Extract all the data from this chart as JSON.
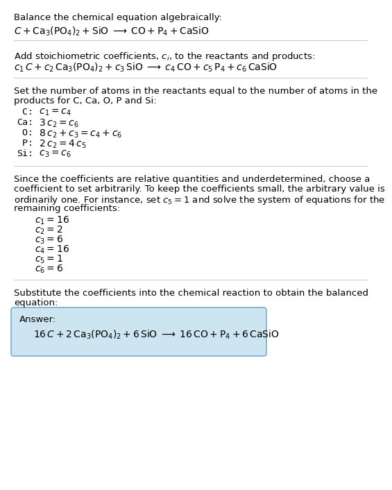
{
  "bg_color": "#ffffff",
  "text_color": "#000000",
  "box_color": "#cce5f0",
  "box_edge_color": "#5ba3c9",
  "section1_title": "Balance the chemical equation algebraically:",
  "section1_eq": "$C + \\mathrm{Ca_3(PO_4)_2} + \\mathrm{SiO} \\;\\longrightarrow\\; \\mathrm{CO} + \\mathrm{P_4} + \\mathrm{CaSiO}$",
  "section2_intro": "Add stoichiometric coefficients, $c_i$, to the reactants and products:",
  "section2_eq": "$c_1\\, C + c_2\\, \\mathrm{Ca_3(PO_4)_2} + c_3\\, \\mathrm{SiO} \\;\\longrightarrow\\; c_4\\, \\mathrm{CO} + c_5\\, \\mathrm{P_4} + c_6\\, \\mathrm{CaSiO}$",
  "section3_intro_lines": [
    "Set the number of atoms in the reactants equal to the number of atoms in the",
    "products for C, Ca, O, P and Si:"
  ],
  "section3_lines": [
    [
      " C:",
      " $c_1 = c_4$"
    ],
    [
      "Ca:",
      " $3\\,c_2 = c_6$"
    ],
    [
      " O:",
      " $8\\,c_2 + c_3 = c_4 + c_6$"
    ],
    [
      " P:",
      " $2\\,c_2 = 4\\,c_5$"
    ],
    [
      "Si:",
      " $c_3 = c_6$"
    ]
  ],
  "section4_intro_lines": [
    "Since the coefficients are relative quantities and underdetermined, choose a",
    "coefficient to set arbitrarily. To keep the coefficients small, the arbitrary value is",
    "ordinarily one. For instance, set $c_5 = 1$ and solve the system of equations for the",
    "remaining coefficients:"
  ],
  "section4_lines": [
    "$c_1 = 16$",
    "$c_2 = 2$",
    "$c_3 = 6$",
    "$c_4 = 16$",
    "$c_5 = 1$",
    "$c_6 = 6$"
  ],
  "section5_intro_lines": [
    "Substitute the coefficients into the chemical reaction to obtain the balanced",
    "equation:"
  ],
  "answer_label": "Answer:",
  "answer_eq": "$16\\,C + 2\\,\\mathrm{Ca_3(PO_4)_2} + 6\\,\\mathrm{SiO} \\;\\longrightarrow\\; 16\\,\\mathrm{CO} + \\mathrm{P_4} + 6\\,\\mathrm{CaSiO}$",
  "fs": 9.5,
  "fs_eq": 10.0
}
